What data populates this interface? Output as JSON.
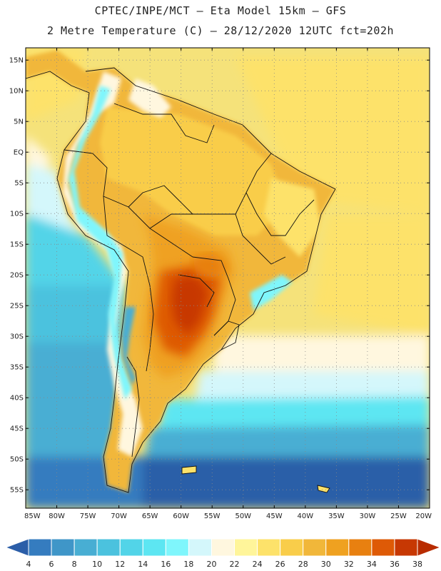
{
  "header": {
    "line1": "CPTEC/INPE/MCT –  Eta Model 15km – GFS",
    "line2": "2 Metre Temperature (C) – 28/12/2020 12UTC fct=202h"
  },
  "map": {
    "lon_range": [
      -85,
      -20
    ],
    "lat_range": [
      -58,
      17
    ],
    "lat_ticks": [
      {
        "value": 15,
        "label": "15N"
      },
      {
        "value": 10,
        "label": "10N"
      },
      {
        "value": 5,
        "label": "5N"
      },
      {
        "value": 0,
        "label": "EQ"
      },
      {
        "value": -5,
        "label": "5S"
      },
      {
        "value": -10,
        "label": "10S"
      },
      {
        "value": -15,
        "label": "15S"
      },
      {
        "value": -20,
        "label": "20S"
      },
      {
        "value": -25,
        "label": "25S"
      },
      {
        "value": -30,
        "label": "30S"
      },
      {
        "value": -35,
        "label": "35S"
      },
      {
        "value": -40,
        "label": "40S"
      },
      {
        "value": -45,
        "label": "45S"
      },
      {
        "value": -50,
        "label": "50S"
      },
      {
        "value": -55,
        "label": "55S"
      }
    ],
    "lon_ticks": [
      {
        "value": -85,
        "label": "85W"
      },
      {
        "value": -80,
        "label": "80W"
      },
      {
        "value": -75,
        "label": "75W"
      },
      {
        "value": -70,
        "label": "70W"
      },
      {
        "value": -65,
        "label": "65W"
      },
      {
        "value": -60,
        "label": "60W"
      },
      {
        "value": -55,
        "label": "55W"
      },
      {
        "value": -50,
        "label": "50W"
      },
      {
        "value": -45,
        "label": "45W"
      },
      {
        "value": -40,
        "label": "40W"
      },
      {
        "value": -35,
        "label": "35W"
      },
      {
        "value": -30,
        "label": "30W"
      },
      {
        "value": -25,
        "label": "25W"
      },
      {
        "value": -20,
        "label": "20W"
      }
    ],
    "grid": true,
    "ocean_color": "#f5e27a",
    "land_base_color": "#f0c050"
  },
  "colorbar": {
    "labels": [
      "4",
      "6",
      "8",
      "10",
      "12",
      "14",
      "16",
      "18",
      "20",
      "22",
      "24",
      "26",
      "28",
      "30",
      "32",
      "34",
      "36",
      "38"
    ],
    "colors": [
      "#2b5ea8",
      "#357cbf",
      "#3f96c8",
      "#48aed3",
      "#4bc2de",
      "#52d4e8",
      "#5de6f2",
      "#7ff6fc",
      "#d4f7fb",
      "#fff7df",
      "#fff59a",
      "#fde26a",
      "#f9cd4a",
      "#f1b73a",
      "#efa120",
      "#e88010",
      "#de5a06",
      "#c73803",
      "#b82c00"
    ]
  }
}
